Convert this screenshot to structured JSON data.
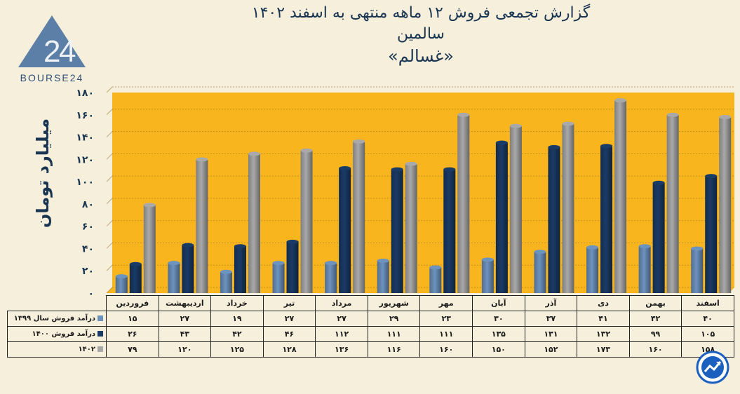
{
  "title": {
    "line1": "گزارش تجمعی فروش ۱۲ ماهه منتهی به اسفند ۱۴۰۲",
    "line2": "سالمین",
    "line3": "«غسالم»"
  },
  "logo": {
    "text": "BOURSE24",
    "mark": "24"
  },
  "colors": {
    "background": "#f9b51d",
    "series1": "#6d93bf",
    "series2": "#1a3b66",
    "series3": "#a9a9a9",
    "title": "#1a3552"
  },
  "chart_data": {
    "type": "bar",
    "ylabel": "میلیارد تومان",
    "ylim": [
      0,
      180
    ],
    "yticks": [
      "۰",
      "۲۰",
      "۴۰",
      "۶۰",
      "۸۰",
      "۱۰۰",
      "۱۲۰",
      "۱۴۰",
      "۱۶۰",
      "۱۸۰"
    ],
    "ytick_values": [
      0,
      20,
      40,
      60,
      80,
      100,
      120,
      140,
      160,
      180
    ],
    "grid": true,
    "categories": [
      "فروردین",
      "اردیبهشت",
      "خرداد",
      "تیر",
      "مرداد",
      "شهریور",
      "مهر",
      "آبان",
      "آذر",
      "دی",
      "بهمن",
      "اسفند"
    ],
    "series": [
      {
        "name": "درآمد فروش سال ۱۳۹۹",
        "values": [
          15,
          27,
          19,
          27,
          27,
          29,
          23,
          30,
          37,
          41,
          42,
          40
        ],
        "labels": [
          "۱۵",
          "۲۷",
          "۱۹",
          "۲۷",
          "۲۷",
          "۲۹",
          "۲۳",
          "۳۰",
          "۳۷",
          "۴۱",
          "۴۲",
          "۴۰"
        ]
      },
      {
        "name": "درآمد فروش ۱۴۰۰",
        "values": [
          26,
          43,
          42,
          46,
          112,
          111,
          111,
          135,
          131,
          132,
          99,
          105
        ],
        "labels": [
          "۲۶",
          "۴۳",
          "۴۲",
          "۴۶",
          "۱۱۲",
          "۱۱۱",
          "۱۱۱",
          "۱۳۵",
          "۱۳۱",
          "۱۳۲",
          "۹۹",
          "۱۰۵"
        ]
      },
      {
        "name": "۱۴۰۲",
        "values": [
          79,
          120,
          125,
          128,
          136,
          116,
          160,
          150,
          152,
          173,
          160,
          158
        ],
        "labels": [
          "۷۹",
          "۱۲۰",
          "۱۲۵",
          "۱۲۸",
          "۱۳۶",
          "۱۱۶",
          "۱۶۰",
          "۱۵۰",
          "۱۵۲",
          "۱۷۳",
          "۱۶۰",
          "۱۵۸"
        ]
      }
    ]
  }
}
